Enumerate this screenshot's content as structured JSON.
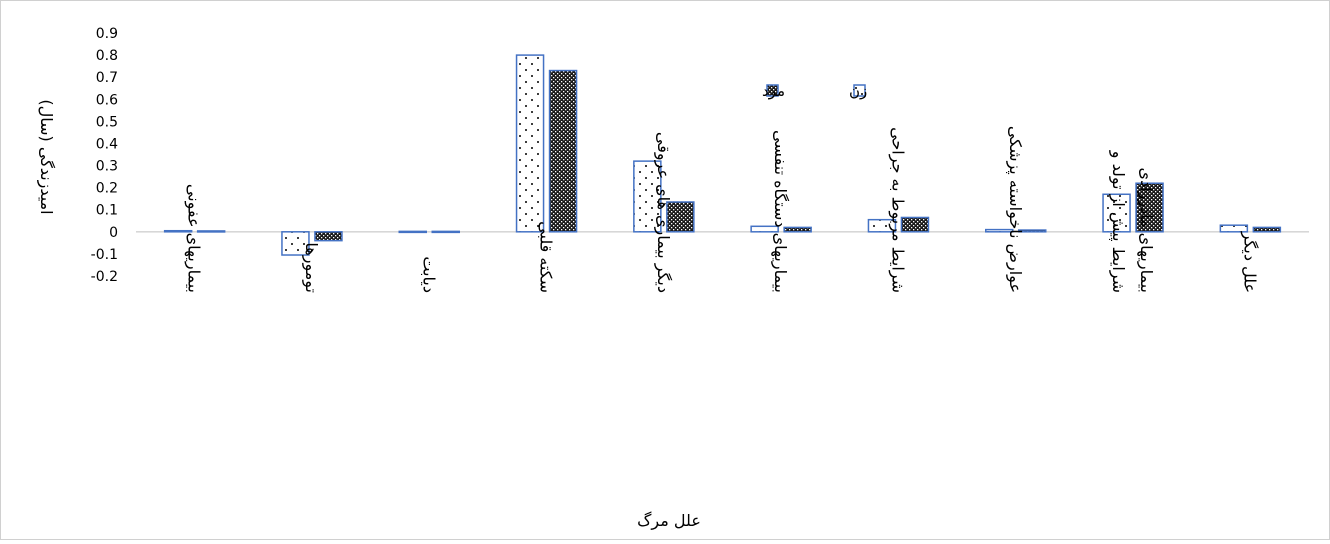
{
  "chart_data": {
    "type": "bar",
    "title": "",
    "xlabel": "علل مرگ",
    "ylabel": "امیدزندگی (سال)",
    "ylim": [
      -0.2,
      0.9
    ],
    "yticks": [
      0.9,
      0.8,
      0.7,
      0.6,
      0.5,
      0.4,
      0.3,
      0.2,
      0.1,
      0,
      -0.1,
      -0.2
    ],
    "ytick_labels": [
      "0.9",
      "0.8",
      "0.7",
      "0.6",
      "0.5",
      "0.4",
      "0.3",
      "0.2",
      "0.1",
      "0",
      "-0.1",
      "-0.2"
    ],
    "grid": false,
    "legend_position": "top-center",
    "categories": [
      "بیماریهای عفونی",
      "تومورها",
      "دیابت",
      "سکته قلبی",
      "دیگر بیماری های عروقی",
      "بیماریهای دستگاه تنفسی",
      "شرایط مربوط به جراحی",
      "عوارض ناخواسته پزشکی",
      "شرایط پیش از تولد و بیماریهای مادرزادی",
      "علل دیگر"
    ],
    "series": [
      {
        "name": "زن",
        "pattern": "dots",
        "color": "#4472c4",
        "values": [
          0.005,
          -0.105,
          0.002,
          0.8,
          0.32,
          0.025,
          0.055,
          0.01,
          0.17,
          0.03
        ]
      },
      {
        "name": "مرد",
        "pattern": "crosshatch",
        "color": "#4472c4",
        "values": [
          0.004,
          -0.04,
          0.002,
          0.73,
          0.135,
          0.02,
          0.065,
          0.008,
          0.22,
          0.02
        ]
      }
    ]
  }
}
